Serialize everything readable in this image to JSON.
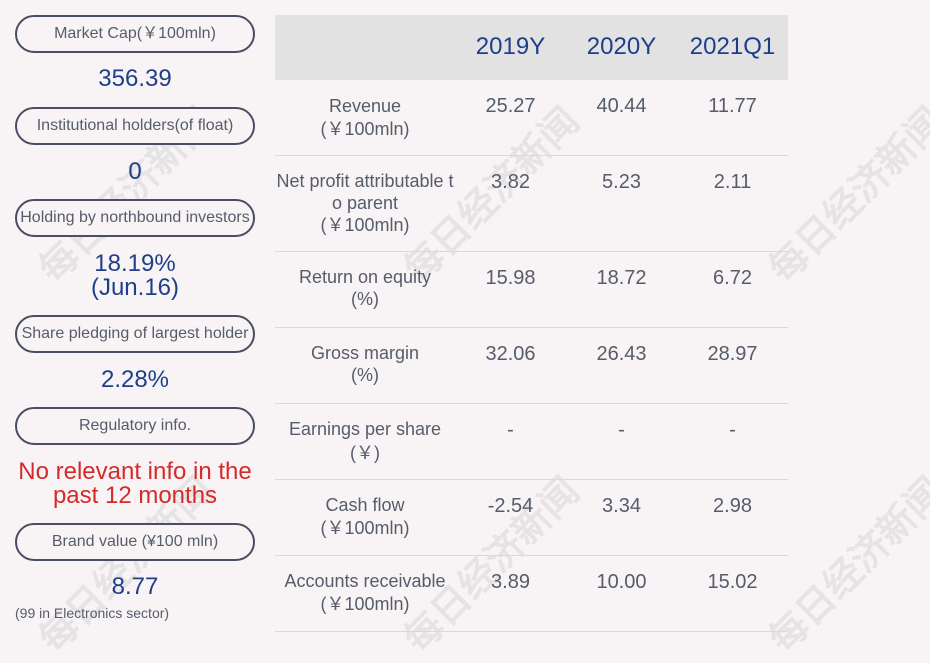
{
  "sidebar": {
    "items": [
      {
        "label": "Market Cap(￥100mln)",
        "value": "356.39"
      },
      {
        "label": "Institutional holders(of float)",
        "value": "0"
      },
      {
        "label": "Holding by northbound investors",
        "value": "18.19%",
        "value2": "(Jun.16)"
      },
      {
        "label": "Share pledging of largest holder",
        "value": "2.28%"
      },
      {
        "label": "Regulatory info.",
        "value": "No relevant info in the",
        "value2": "past 12 months"
      },
      {
        "label": "Brand value (¥100 mln)",
        "value": "8.77",
        "note": "(99 in Electronics sector)"
      }
    ]
  },
  "table": {
    "headers": [
      "2019Y",
      "2020Y",
      "2021Q1"
    ],
    "rows": [
      {
        "label": "Revenue",
        "unit": "(￥100mln)",
        "values": [
          "25.27",
          "40.44",
          "11.77"
        ]
      },
      {
        "label": "Net profit attributable t",
        "label2": "o parent",
        "unit": "(￥100mln)",
        "values": [
          "3.82",
          "5.23",
          "2.11"
        ]
      },
      {
        "label": "Return on equity",
        "unit": "(%)",
        "values": [
          "15.98",
          "18.72",
          "6.72"
        ]
      },
      {
        "label": "Gross margin",
        "unit": "(%)",
        "values": [
          "32.06",
          "26.43",
          "28.97"
        ]
      },
      {
        "label": "Earnings per share",
        "unit": "(￥)",
        "values": [
          "-",
          "-",
          "-"
        ]
      },
      {
        "label": "Cash flow",
        "unit": "(￥100mln)",
        "values": [
          "-2.54",
          "3.34",
          "2.98"
        ]
      },
      {
        "label": "Accounts receivable",
        "unit": "(￥100mln)",
        "values": [
          "3.89",
          "10.00",
          "15.02"
        ]
      }
    ]
  },
  "watermark": "每日经济新闻",
  "colors": {
    "accent": "#1f3e8a",
    "alert": "#d52a2a",
    "header_bg": "#e3e2e3"
  }
}
